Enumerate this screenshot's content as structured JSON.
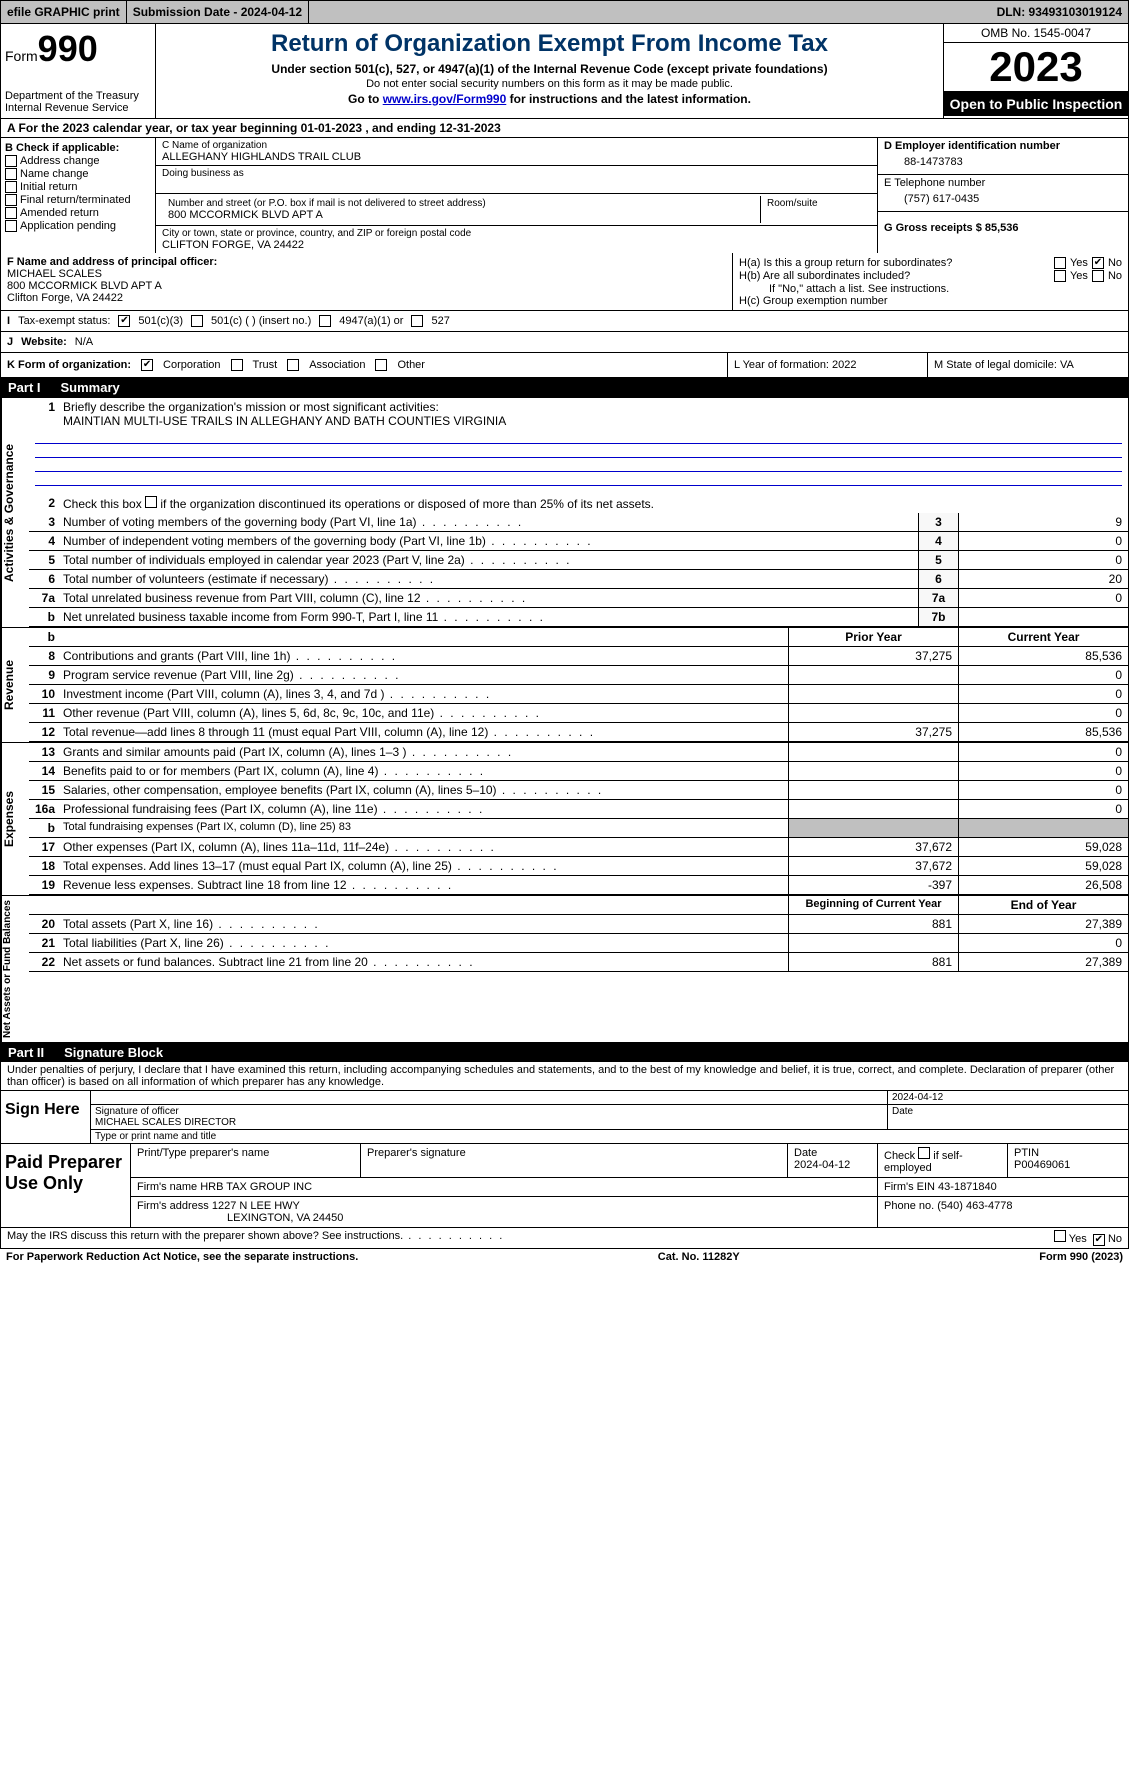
{
  "top": {
    "efile": "efile GRAPHIC print",
    "submission_label": "Submission Date - 2024-04-12",
    "dln": "DLN: 93493103019124"
  },
  "header": {
    "form_prefix": "Form",
    "form_num": "990",
    "dept": "Department of the Treasury Internal Revenue Service",
    "title": "Return of Organization Exempt From Income Tax",
    "sub": "Under section 501(c), 527, or 4947(a)(1) of the Internal Revenue Code (except private foundations)",
    "sub2": "Do not enter social security numbers on this form as it may be made public.",
    "goto_pre": "Go to ",
    "goto_link": "www.irs.gov/Form990",
    "goto_post": " for instructions and the latest information.",
    "omb": "OMB No. 1545-0047",
    "year": "2023",
    "inspect": "Open to Public Inspection"
  },
  "lineA": "A For the 2023 calendar year, or tax year beginning 01-01-2023    , and ending 12-31-2023",
  "boxB": {
    "label": "B Check if applicable:",
    "items": [
      "Address change",
      "Name change",
      "Initial return",
      "Final return/terminated",
      "Amended return",
      "Application pending"
    ]
  },
  "boxC": {
    "name_lbl": "C Name of organization",
    "name": "ALLEGHANY HIGHLANDS TRAIL CLUB",
    "dba_lbl": "Doing business as",
    "addr_lbl": "Number and street (or P.O. box if mail is not delivered to street address)",
    "room_lbl": "Room/suite",
    "addr": "800 MCCORMICK BLVD APT A",
    "city_lbl": "City or town, state or province, country, and ZIP or foreign postal code",
    "city": "CLIFTON FORGE, VA  24422"
  },
  "boxD": {
    "lbl": "D Employer identification number",
    "val": "88-1473783"
  },
  "boxE": {
    "lbl": "E Telephone number",
    "val": "(757) 617-0435"
  },
  "boxG": {
    "lbl": "G Gross receipts $ 85,536"
  },
  "boxF": {
    "lbl": "F  Name and address of principal officer:",
    "name": "MICHAEL SCALES",
    "addr1": "800 MCCORMICK BLVD APT A",
    "addr2": "Clifton Forge, VA  24422"
  },
  "boxH": {
    "a": "H(a)  Is this a group return for subordinates?",
    "b": "H(b)  Are all subordinates included?",
    "note": "If \"No,\" attach a list. See instructions.",
    "c": "H(c)  Group exemption number  ",
    "yes": "Yes",
    "no": "No"
  },
  "taxI": {
    "lbl": "Tax-exempt status:",
    "o1": "501(c)(3)",
    "o2": "501(c) (   ) (insert no.)",
    "o3": "4947(a)(1) or",
    "o4": "527",
    "I": "I"
  },
  "lineJ": {
    "lbl": "Website:  ",
    "val": "N/A",
    "J": "J"
  },
  "lineK": {
    "lbl": "K Form of organization:",
    "opts": [
      "Corporation",
      "Trust",
      "Association",
      "Other"
    ],
    "L": "L Year of formation: 2022",
    "M": "M State of legal domicile: VA"
  },
  "part1": {
    "hdr": "Part I",
    "title": "Summary",
    "tabs": {
      "ag": "Activities & Governance",
      "rev": "Revenue",
      "exp": "Expenses",
      "na": "Net Assets or Fund Balances"
    },
    "l1": "Briefly describe the organization's mission or most significant activities:",
    "mission": "MAINTIAN MULTI-USE TRAILS IN ALLEGHANY AND BATH COUNTIES VIRGINIA",
    "l2": "Check this box        if the organization discontinued its operations or disposed of more than 25% of its net assets.",
    "rows_gov": [
      {
        "n": "3",
        "t": "Number of voting members of the governing body (Part VI, line 1a)",
        "b": "3",
        "v": "9"
      },
      {
        "n": "4",
        "t": "Number of independent voting members of the governing body (Part VI, line 1b)",
        "b": "4",
        "v": "0"
      },
      {
        "n": "5",
        "t": "Total number of individuals employed in calendar year 2023 (Part V, line 2a)",
        "b": "5",
        "v": "0"
      },
      {
        "n": "6",
        "t": "Total number of volunteers (estimate if necessary)",
        "b": "6",
        "v": "20"
      },
      {
        "n": "7a",
        "t": "Total unrelated business revenue from Part VIII, column (C), line 12",
        "b": "7a",
        "v": "0"
      },
      {
        "n": "b",
        "t": "Net unrelated business taxable income from Form 990-T, Part I, line 11",
        "b": "7b",
        "v": ""
      }
    ],
    "col_prior": "Prior Year",
    "col_curr": "Current Year",
    "rows_rev": [
      {
        "n": "8",
        "t": "Contributions and grants (Part VIII, line 1h)",
        "p": "37,275",
        "c": "85,536"
      },
      {
        "n": "9",
        "t": "Program service revenue (Part VIII, line 2g)",
        "p": "",
        "c": "0"
      },
      {
        "n": "10",
        "t": "Investment income (Part VIII, column (A), lines 3, 4, and 7d )",
        "p": "",
        "c": "0"
      },
      {
        "n": "11",
        "t": "Other revenue (Part VIII, column (A), lines 5, 6d, 8c, 9c, 10c, and 11e)",
        "p": "",
        "c": "0"
      },
      {
        "n": "12",
        "t": "Total revenue—add lines 8 through 11 (must equal Part VIII, column (A), line 12)",
        "p": "37,275",
        "c": "85,536"
      }
    ],
    "rows_exp": [
      {
        "n": "13",
        "t": "Grants and similar amounts paid (Part IX, column (A), lines 1–3 )",
        "p": "",
        "c": "0"
      },
      {
        "n": "14",
        "t": "Benefits paid to or for members (Part IX, column (A), line 4)",
        "p": "",
        "c": "0"
      },
      {
        "n": "15",
        "t": "Salaries, other compensation, employee benefits (Part IX, column (A), lines 5–10)",
        "p": "",
        "c": "0"
      },
      {
        "n": "16a",
        "t": "Professional fundraising fees (Part IX, column (A), line 11e)",
        "p": "",
        "c": "0"
      }
    ],
    "l16b": "Total fundraising expenses (Part IX, column (D), line 25) 83",
    "rows_exp2": [
      {
        "n": "17",
        "t": "Other expenses (Part IX, column (A), lines 11a–11d, 11f–24e)",
        "p": "37,672",
        "c": "59,028"
      },
      {
        "n": "18",
        "t": "Total expenses. Add lines 13–17 (must equal Part IX, column (A), line 25)",
        "p": "37,672",
        "c": "59,028"
      },
      {
        "n": "19",
        "t": "Revenue less expenses. Subtract line 18 from line 12",
        "p": "-397",
        "c": "26,508"
      }
    ],
    "col_beg": "Beginning of Current Year",
    "col_end": "End of Year",
    "rows_na": [
      {
        "n": "20",
        "t": "Total assets (Part X, line 16)",
        "p": "881",
        "c": "27,389"
      },
      {
        "n": "21",
        "t": "Total liabilities (Part X, line 26)",
        "p": "",
        "c": "0"
      },
      {
        "n": "22",
        "t": "Net assets or fund balances. Subtract line 21 from line 20",
        "p": "881",
        "c": "27,389"
      }
    ]
  },
  "part2": {
    "hdr": "Part II",
    "title": "Signature Block",
    "decl": "Under penalties of perjury, I declare that I have examined this return, including accompanying schedules and statements, and to the best of my knowledge and belief, it is true, correct, and complete. Declaration of preparer (other than officer) is based on all information of which preparer has any knowledge.",
    "sign_here": "Sign Here",
    "sig_officer_lbl": "Signature of officer",
    "sig_officer": "MICHAEL SCALES  DIRECTOR",
    "sig_date": "2024-04-12",
    "date_lbl": "Date",
    "type_lbl": "Type or print name and title",
    "paid": "Paid Preparer Use Only",
    "prep_name_lbl": "Print/Type preparer's name",
    "prep_sig_lbl": "Preparer's signature",
    "prep_date_lbl": "Date",
    "prep_date": "2024-04-12",
    "self_emp": "Check         if self-employed",
    "ptin_lbl": "PTIN",
    "ptin": "P00469061",
    "firm_name_lbl": "Firm's name      ",
    "firm_name": "HRB TAX GROUP INC",
    "firm_ein_lbl": "Firm's EIN  ",
    "firm_ein": "43-1871840",
    "firm_addr_lbl": "Firm's address ",
    "firm_addr1": "1227 N LEE HWY",
    "firm_addr2": "LEXINGTON, VA  24450",
    "phone_lbl": "Phone no. ",
    "phone": "(540) 463-4778",
    "may_irs": "May the IRS discuss this return with the preparer shown above? See instructions.",
    "yes": "Yes",
    "no": "No"
  },
  "footer": {
    "pra": "For Paperwork Reduction Act Notice, see the separate instructions.",
    "cat": "Cat. No. 11282Y",
    "form": "Form 990 (2023)"
  }
}
